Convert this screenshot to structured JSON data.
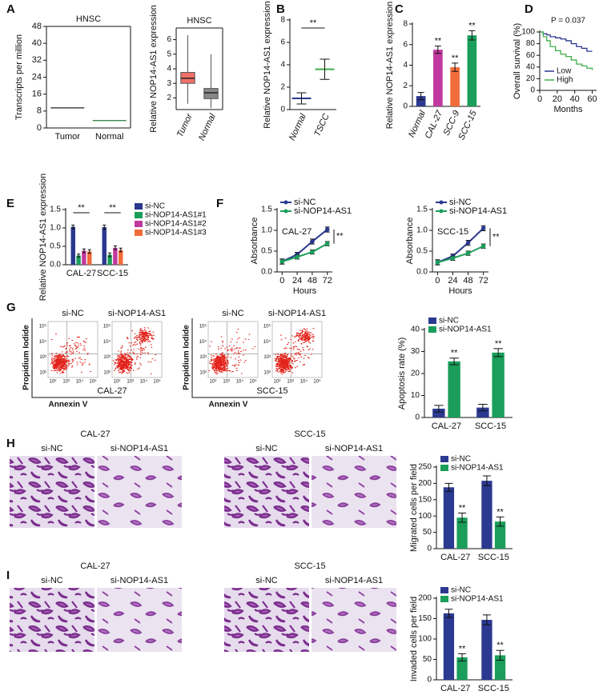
{
  "chart_data": [
    {
      "type": "strip",
      "panel": "A",
      "title": "HNSC",
      "ylabel": "Transcripts per million",
      "categories": [
        "Tumor",
        "Normal"
      ],
      "values": [
        9.5,
        3.5
      ],
      "colors": [
        "#222222",
        "#2a7a3a"
      ],
      "ylim": [
        0,
        48
      ],
      "yticks": [
        0,
        8,
        16,
        24,
        32,
        40,
        48
      ]
    },
    {
      "type": "box",
      "title": "HNSC",
      "ylabel": "Relative NOP14-AS1 expression",
      "categories": [
        "Tumor",
        "Normal"
      ],
      "boxes": [
        {
          "min": 1.6,
          "q1": 3.0,
          "median": 3.35,
          "q3": 3.75,
          "max": 6.3
        },
        {
          "min": 1.3,
          "q1": 1.95,
          "median": 2.35,
          "q3": 2.65,
          "max": 5.0
        }
      ],
      "colors": [
        "#f0706a",
        "#888888"
      ],
      "ylim": [
        1.2,
        6.8
      ],
      "yticks": [
        2,
        3,
        4,
        5,
        6
      ]
    },
    {
      "type": "mean_sd",
      "panel": "B",
      "ylabel": "Relative NOP14-AS1 expression",
      "categories": [
        "Normal",
        "TSCC"
      ],
      "values": [
        1.0,
        3.6
      ],
      "errors": [
        0.5,
        0.9
      ],
      "colors": [
        "#2b3990",
        "#3fae49"
      ],
      "annotation": "**",
      "ylim": [
        0,
        8
      ],
      "yticks": [
        0,
        2,
        4,
        6,
        8
      ]
    },
    {
      "type": "bar",
      "panel": "C",
      "ylabel": "Relative NOP14-AS1 expression",
      "categories": [
        "Normal",
        "CAL-27",
        "SCC-9",
        "SCC-15"
      ],
      "values": [
        1.0,
        5.5,
        3.8,
        6.9
      ],
      "errors": [
        0.35,
        0.35,
        0.4,
        0.45
      ],
      "colors": [
        "#2b3990",
        "#c1399e",
        "#f26b3a",
        "#1a9e5a"
      ],
      "annotations": [
        null,
        "**",
        "**",
        "**"
      ],
      "ylim": [
        0,
        8
      ],
      "yticks": [
        0,
        2,
        4,
        6,
        8
      ]
    },
    {
      "type": "step",
      "panel": "D",
      "annotation": "P = 0.037",
      "ylabel": "Overall survival (%)",
      "xlabel": "Months",
      "xlim": [
        0,
        65
      ],
      "xticks": [
        0,
        20,
        40,
        60
      ],
      "ylim": [
        0,
        100
      ],
      "yticks": [
        0,
        20,
        40,
        60,
        80,
        100
      ],
      "series": [
        {
          "name": "Low",
          "color": "#2b3990",
          "x": [
            0,
            4,
            8,
            12,
            18,
            24,
            30,
            36,
            42,
            48,
            54,
            60
          ],
          "values": [
            100,
            97,
            95,
            92,
            90,
            88,
            85,
            80,
            75,
            72,
            67,
            67
          ]
        },
        {
          "name": "High",
          "color": "#3fae49",
          "x": [
            0,
            4,
            8,
            12,
            18,
            24,
            30,
            36,
            42,
            48,
            54,
            60
          ],
          "values": [
            100,
            92,
            85,
            75,
            68,
            62,
            58,
            52,
            45,
            42,
            38,
            35
          ]
        }
      ]
    },
    {
      "type": "grouped_bar",
      "panel": "E",
      "ylabel": "Relative NOP14-AS1 expression",
      "categories": [
        "CAL-27",
        "SCC-15"
      ],
      "annotations": [
        "**",
        "**"
      ],
      "ylim": [
        0,
        1.5
      ],
      "yticks": [
        {
          "value": 0,
          "label": "0.0"
        },
        0.5,
        {
          "value": 1,
          "label": "1.0"
        },
        1.5
      ],
      "series": [
        {
          "name": "si-NC",
          "color": "#2b3990",
          "values": [
            1.03,
            1.02
          ],
          "errors": [
            0.05,
            0.06
          ]
        },
        {
          "name": "si-NOP14-AS1#1",
          "color": "#1a9e5a",
          "values": [
            0.25,
            0.27
          ],
          "errors": [
            0.04,
            0.05
          ]
        },
        {
          "name": "si-NOP14-AS1#2",
          "color": "#c1399e",
          "values": [
            0.38,
            0.46
          ],
          "errors": [
            0.05,
            0.05
          ]
        },
        {
          "name": "si-NOP14-AS1#3",
          "color": "#f26b3a",
          "values": [
            0.36,
            0.4
          ],
          "errors": [
            0.05,
            0.05
          ]
        }
      ]
    },
    {
      "type": "line",
      "panel": "F",
      "ylabel": "Absorbance",
      "xlabel": "Hours",
      "inset_label": "CAL-27",
      "annotation": "**",
      "x": [
        0,
        24,
        48,
        72
      ],
      "xlim": [
        -8,
        80
      ],
      "xticks": [
        0,
        24,
        48,
        72
      ],
      "ylim": [
        0,
        1.5
      ],
      "yticks": [
        {
          "value": 0,
          "label": "0.0"
        },
        0.5,
        {
          "value": 1,
          "label": "1.0"
        },
        1.5
      ],
      "series": [
        {
          "name": "si-NC",
          "color": "#2b3990",
          "values": [
            0.25,
            0.42,
            0.73,
            1.02
          ],
          "errors": [
            0.06,
            0.05,
            0.06,
            0.06
          ]
        },
        {
          "name": "si-NOP14-AS1",
          "color": "#1a9e5a",
          "values": [
            0.25,
            0.36,
            0.48,
            0.68
          ],
          "errors": [
            0.06,
            0.05,
            0.05,
            0.05
          ]
        }
      ]
    },
    {
      "type": "line",
      "ylabel": "Absorbance",
      "xlabel": "Hours",
      "inset_label": "SCC-15",
      "annotation": "**",
      "x": [
        0,
        24,
        48,
        72
      ],
      "xlim": [
        -8,
        80
      ],
      "xticks": [
        0,
        24,
        48,
        72
      ],
      "ylim": [
        0,
        1.5
      ],
      "yticks": [
        {
          "value": 0,
          "label": "0.0"
        },
        0.5,
        {
          "value": 1,
          "label": "1.0"
        },
        1.5
      ],
      "series": [
        {
          "name": "si-NC",
          "color": "#2b3990",
          "values": [
            0.23,
            0.38,
            0.7,
            1.05
          ],
          "errors": [
            0.06,
            0.05,
            0.06,
            0.06
          ]
        },
        {
          "name": "si-NOP14-AS1",
          "color": "#1a9e5a",
          "values": [
            0.23,
            0.33,
            0.45,
            0.62
          ],
          "errors": [
            0.06,
            0.05,
            0.05,
            0.05
          ]
        }
      ]
    },
    {
      "type": "grouped_bar",
      "ylabel": "Apoptosis rate (%)",
      "categories": [
        "CAL-27",
        "SCC-15"
      ],
      "ylim": [
        0,
        40
      ],
      "yticks": [
        0,
        10,
        20,
        30,
        40
      ],
      "series": [
        {
          "name": "si-NC",
          "color": "#2b3990",
          "values": [
            4,
            4.5
          ],
          "errors": [
            1.5,
            1.5
          ]
        },
        {
          "name": "si-NOP14-AS1",
          "color": "#1a9e5a",
          "values": [
            25.5,
            29.5
          ],
          "errors": [
            1.5,
            1.8
          ],
          "annotations": [
            "**",
            "**"
          ]
        }
      ]
    },
    {
      "type": "grouped_bar",
      "ylabel": "Migrated cells per field",
      "categories": [
        "CAL-27",
        "SCC-15"
      ],
      "ylim": [
        0,
        250
      ],
      "yticks": [
        0,
        50,
        100,
        150,
        200,
        250
      ],
      "series": [
        {
          "name": "si-NC",
          "color": "#2b3990",
          "values": [
            188,
            208
          ],
          "errors": [
            12,
            15
          ]
        },
        {
          "name": "si-NOP14-AS1",
          "color": "#1a9e5a",
          "values": [
            95,
            83
          ],
          "errors": [
            14,
            14
          ],
          "annotations": [
            "**",
            "**"
          ]
        }
      ]
    },
    {
      "type": "grouped_bar",
      "ylabel": "Invaded cells per field",
      "categories": [
        "CAL-27",
        "SCC-15"
      ],
      "ylim": [
        0,
        200
      ],
      "yticks": [
        0,
        50,
        100,
        150,
        200
      ],
      "series": [
        {
          "name": "si-NC",
          "color": "#2b3990",
          "values": [
            163,
            147
          ],
          "errors": [
            10,
            12
          ]
        },
        {
          "name": "si-NOP14-AS1",
          "color": "#1a9e5a",
          "values": [
            55,
            60
          ],
          "errors": [
            9,
            12
          ],
          "annotations": [
            "**",
            "**"
          ]
        }
      ]
    }
  ],
  "flow": {
    "panel": "G",
    "ylabel": "Propidium Iodide",
    "xlabel": "Annexin V",
    "xtick_labels": [
      "10²",
      "10³",
      "10⁴",
      "10⁵"
    ],
    "ytick_labels": [
      "10⁵",
      "10⁴",
      "10³",
      "10²"
    ],
    "plots": [
      {
        "cell_line": "CAL-27",
        "conditions": [
          "si-NC",
          "si-NOP14-AS1"
        ]
      },
      {
        "cell_line": "SCC-15",
        "conditions": [
          "si-NC",
          "si-NOP14-AS1"
        ]
      }
    ]
  },
  "micrographs": [
    {
      "panel": "H",
      "groups": [
        {
          "title": "CAL-27",
          "conditions": [
            "si-NC",
            "si-NOP14-AS1"
          ]
        },
        {
          "title": "SCC-15",
          "conditions": [
            "si-NC",
            "si-NOP14-AS1"
          ]
        }
      ]
    },
    {
      "panel": "I",
      "groups": [
        {
          "title": "CAL-27",
          "conditions": [
            "si-NC",
            "si-NOP14-AS1"
          ]
        },
        {
          "title": "SCC-15",
          "conditions": [
            "si-NC",
            "si-NOP14-AS1"
          ]
        }
      ]
    }
  ]
}
